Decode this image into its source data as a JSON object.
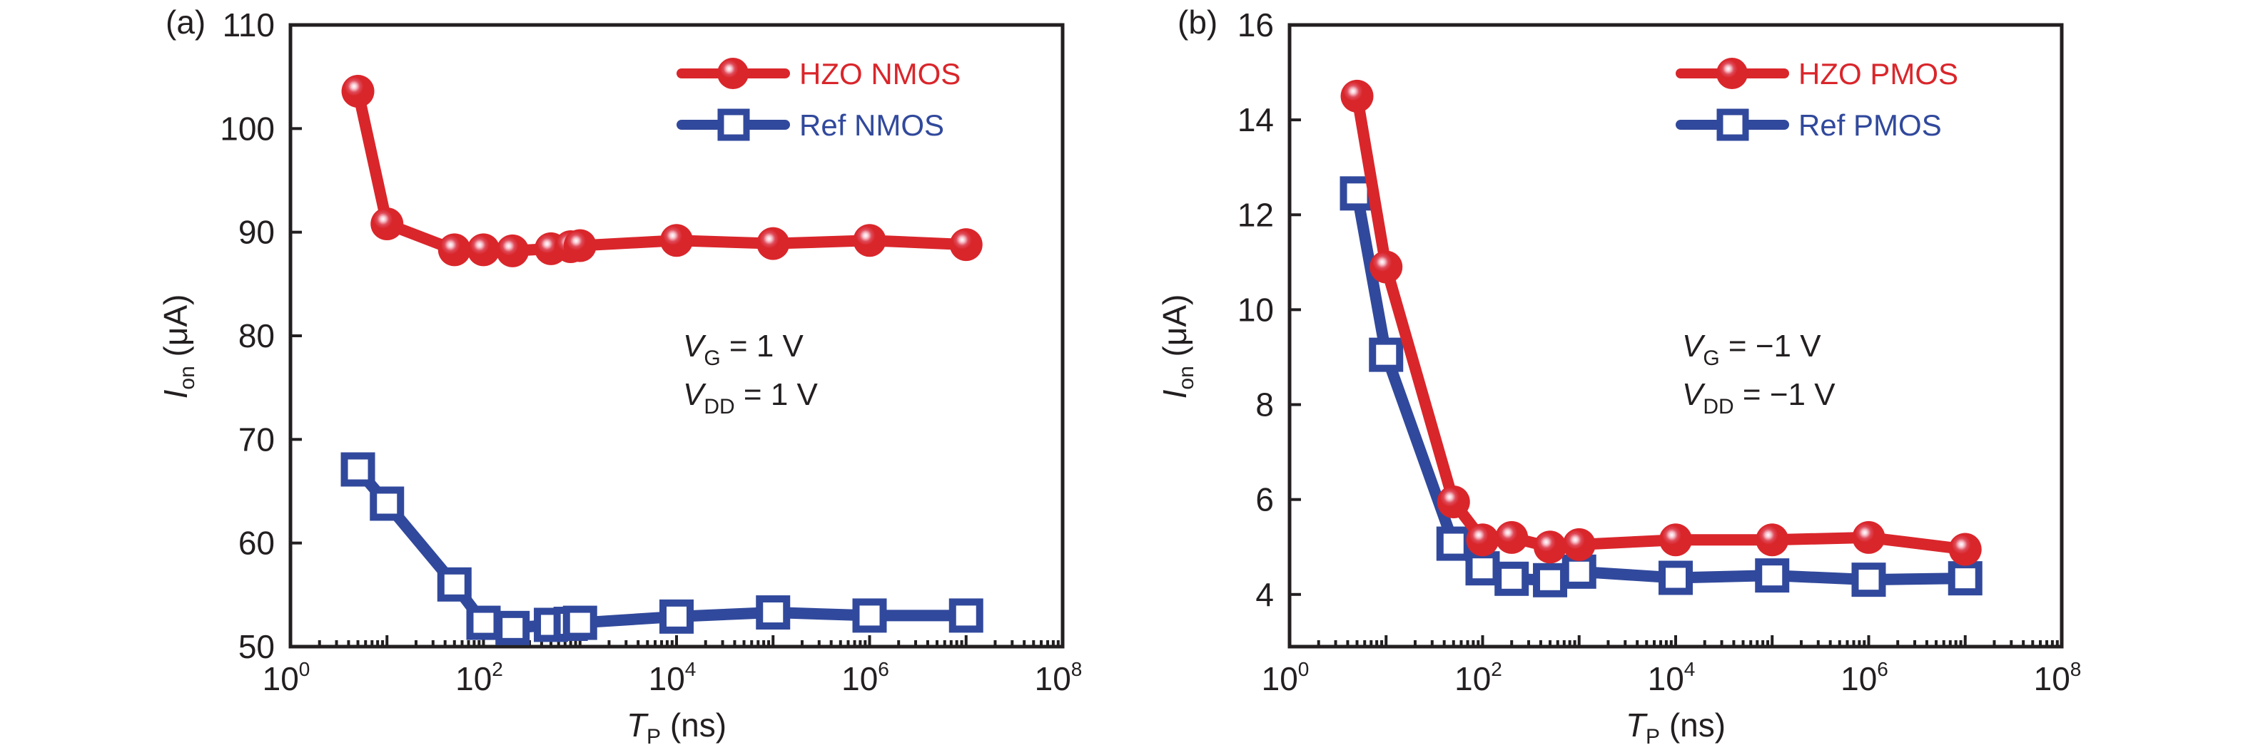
{
  "figure": {
    "panels": [
      {
        "panel_label": "(a)",
        "annotation": [
          {
            "symbol": "V",
            "subscript": "G",
            "text": " = 1 V"
          },
          {
            "symbol": "V",
            "subscript": "DD",
            "text": " = 1 V"
          }
        ]
      },
      {
        "panel_label": "(b)",
        "annotation": [
          {
            "symbol": "V",
            "subscript": "G",
            "text": " = −1 V"
          },
          {
            "symbol": "V",
            "subscript": "DD",
            "text": " = −1 V"
          }
        ]
      }
    ],
    "colors": {
      "hzo": "#d9262b",
      "ref": "#31499c",
      "axis": "#231f20"
    }
  },
  "chart_data": [
    {
      "type": "line",
      "title": "(a)",
      "xlabel": {
        "symbol": "T",
        "subscript": "P",
        "unit": " (ns)"
      },
      "ylabel": {
        "symbol": "I",
        "subscript": "on",
        "unit": " (μA)"
      },
      "xscale": "log",
      "xlim": [
        1,
        100000000
      ],
      "ylim": [
        50,
        110
      ],
      "x_ticks": [
        {
          "base": "10",
          "exp": "0"
        },
        {
          "base": "10",
          "exp": "2"
        },
        {
          "base": "10",
          "exp": "4"
        },
        {
          "base": "10",
          "exp": "6"
        },
        {
          "base": "10",
          "exp": "8"
        }
      ],
      "y_ticks": [
        "50",
        "60",
        "70",
        "80",
        "90",
        "100",
        "110"
      ],
      "legend_position": "top-right",
      "annotation_text": [
        "V_G = 1 V",
        "V_DD = 1 V"
      ],
      "series": [
        {
          "name": "HZO NMOS",
          "marker": "circle",
          "color": "#d9262b",
          "x": [
            5,
            10,
            50,
            100,
            200,
            500,
            800,
            1000,
            10000,
            100000,
            1000000,
            10000000
          ],
          "y": [
            103.6,
            90.8,
            88.3,
            88.3,
            88.2,
            88.4,
            88.6,
            88.7,
            89.2,
            88.9,
            89.2,
            88.8
          ]
        },
        {
          "name": "Ref NMOS",
          "marker": "square-open",
          "color": "#31499c",
          "x": [
            5,
            10,
            50,
            100,
            200,
            500,
            800,
            1000,
            10000,
            100000,
            1000000,
            10000000
          ],
          "y": [
            67.1,
            63.8,
            56.0,
            52.3,
            51.8,
            52.1,
            52.2,
            52.3,
            52.9,
            53.3,
            53.0,
            53.0
          ]
        }
      ]
    },
    {
      "type": "line",
      "title": "(b)",
      "xlabel": {
        "symbol": "T",
        "subscript": "P",
        "unit": " (ns)"
      },
      "ylabel": {
        "symbol": "I",
        "subscript": "on",
        "unit": " (μA)"
      },
      "xscale": "log",
      "xlim": [
        1,
        100000000
      ],
      "ylim": [
        2.9,
        16
      ],
      "x_ticks": [
        {
          "base": "10",
          "exp": "0"
        },
        {
          "base": "10",
          "exp": "2"
        },
        {
          "base": "10",
          "exp": "4"
        },
        {
          "base": "10",
          "exp": "6"
        },
        {
          "base": "10",
          "exp": "8"
        }
      ],
      "y_ticks": [
        "4",
        "6",
        "8",
        "10",
        "12",
        "14",
        "16"
      ],
      "legend_position": "top-right",
      "annotation_text": [
        "V_G = −1 V",
        "V_DD = −1 V"
      ],
      "series": [
        {
          "name": "HZO PMOS",
          "marker": "circle",
          "color": "#d9262b",
          "x": [
            5,
            10,
            50,
            100,
            200,
            500,
            1000,
            10000,
            100000,
            1000000,
            10000000
          ],
          "y": [
            14.5,
            10.9,
            5.95,
            5.15,
            5.2,
            5.0,
            5.05,
            5.15,
            5.15,
            5.2,
            4.95
          ]
        },
        {
          "name": "Ref PMOS",
          "marker": "square-open",
          "color": "#31499c",
          "x": [
            5,
            10,
            50,
            100,
            200,
            500,
            1000,
            10000,
            100000,
            1000000,
            10000000
          ],
          "y": [
            12.45,
            9.05,
            5.07,
            4.55,
            4.33,
            4.3,
            4.48,
            4.35,
            4.4,
            4.31,
            4.34
          ]
        }
      ]
    }
  ]
}
